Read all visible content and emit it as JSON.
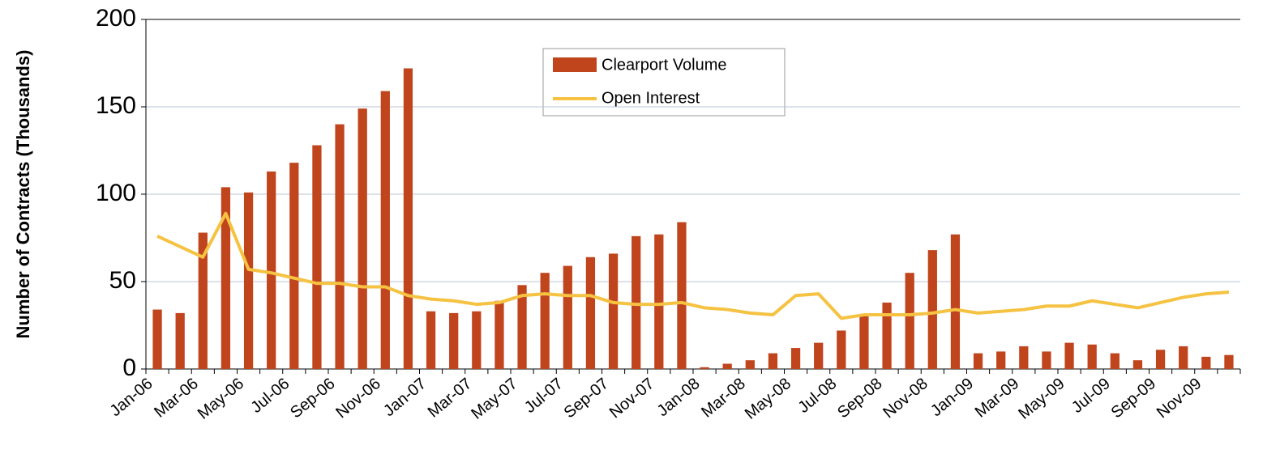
{
  "chart_data": {
    "type": "bar-line",
    "y_label": "Number of Contracts (Thousands)",
    "categories": [
      "Jan-06",
      null,
      "Mar-06",
      null,
      "May-06",
      null,
      "Jul-06",
      null,
      "Sep-06",
      null,
      "Nov-06",
      null,
      "Jan-07",
      null,
      "Mar-07",
      null,
      "May-07",
      null,
      "Jul-07",
      null,
      "Sep-07",
      null,
      "Nov-07",
      null,
      "Jan-08",
      null,
      "Mar-08",
      null,
      "May-08",
      null,
      "Jul-08",
      null,
      "Sep-08",
      null,
      "Nov-08",
      null,
      "Jan-09",
      null,
      "Mar-09",
      null,
      "May-09",
      null,
      "Jul-09",
      null,
      "Sep-09",
      null,
      "Nov-09",
      null
    ],
    "series": [
      {
        "name": "Clearport Volume",
        "type": "bar",
        "color": "#c0441c",
        "values": [
          34,
          32,
          78,
          104,
          101,
          113,
          118,
          128,
          140,
          149,
          159,
          172,
          33,
          32,
          33,
          39,
          48,
          55,
          59,
          64,
          66,
          76,
          77,
          84,
          1,
          3,
          5,
          9,
          12,
          15,
          22,
          31,
          38,
          55,
          68,
          77,
          9,
          10,
          13,
          10,
          15,
          14,
          9,
          5,
          11,
          13,
          7,
          8
        ]
      },
      {
        "name": "Open Interest",
        "type": "line",
        "color": "#f5c242",
        "values": [
          76,
          70,
          64,
          89,
          57,
          55,
          52,
          49,
          49,
          47,
          47,
          42,
          40,
          39,
          37,
          38,
          42,
          43,
          42,
          42,
          38,
          37,
          37,
          38,
          35,
          34,
          32,
          31,
          42,
          43,
          29,
          31,
          31,
          31,
          32,
          34,
          32,
          33,
          34,
          36,
          36,
          39,
          37,
          35,
          38,
          41,
          43,
          44
        ]
      }
    ],
    "ylim": [
      0,
      200
    ],
    "yticks": [
      0,
      50,
      100,
      150,
      200
    ],
    "grid": true
  }
}
